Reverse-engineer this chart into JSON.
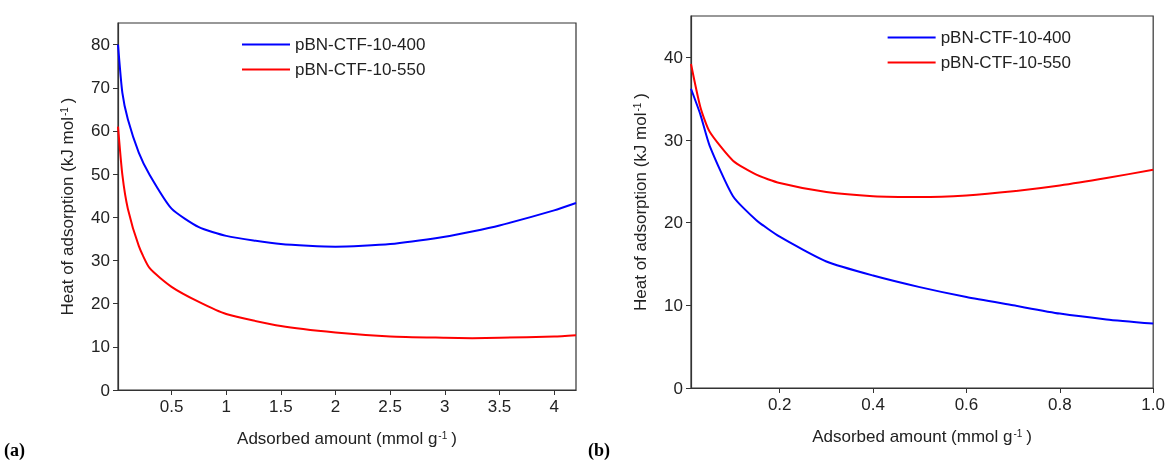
{
  "chart_data": [
    {
      "type": "line",
      "xlabel": "Adsorbed amount (mmol g$^{-1}$)",
      "ylabel": "Heat of adsorption (kJ mol$^{-1}$)",
      "annotations": [
        "(a)"
      ],
      "legend": "top",
      "grid": false,
      "marker": "none",
      "line_style": "solid",
      "xlim": [
        0.01,
        4.2
      ],
      "xticks": [
        0.5,
        1,
        1.5,
        2,
        2.5,
        3,
        3.5,
        4
      ],
      "ylim": [
        0,
        85
      ],
      "yticks": [
        0,
        10,
        20,
        30,
        40,
        50,
        60,
        70,
        80
      ],
      "x": [
        0.01,
        0.05,
        0.1,
        0.2,
        0.3,
        0.5,
        0.75,
        1,
        1.5,
        2,
        2.5,
        3,
        3.25,
        3.5,
        4,
        4.2
      ],
      "series": [
        {
          "name": "pBN-CTF-10-400",
          "color": "#0000ff",
          "values": [
            80,
            68.8,
            62.7,
            55,
            49.8,
            42,
            37.7,
            35.7,
            33.8,
            33.2,
            33.8,
            35.5,
            36.7,
            38.1,
            41.6,
            43.3
          ]
        },
        {
          "name": "pBN-CTF-10-550",
          "color": "#ff0000",
          "values": [
            61,
            49.8,
            42,
            33.4,
            28.2,
            23.9,
            20.4,
            17.6,
            14.8,
            13.3,
            12.4,
            12.1,
            12,
            12.1,
            12.4,
            12.7
          ]
        }
      ]
    },
    {
      "type": "line",
      "xlabel": "Adsorbed amount (mmol g$^{-1}$)",
      "ylabel": "Heat of adsorption (kJ mol$^{-1}$)",
      "annotations": [
        "(b)"
      ],
      "legend": "top right",
      "grid": false,
      "marker": "none",
      "line_style": "solid",
      "xlim": [
        0.01,
        1
      ],
      "xticks": [
        0.2,
        0.4,
        0.6,
        0.8,
        {
          "value": 1,
          "label": "1.0"
        }
      ],
      "ylim": [
        0,
        45
      ],
      "yticks": [
        0,
        10,
        20,
        30,
        40
      ],
      "x": [
        0.01,
        0.03,
        0.05,
        0.1,
        0.15,
        0.2,
        0.3,
        0.4,
        0.5,
        0.6,
        0.7,
        0.8,
        0.9,
        1
      ],
      "series": [
        {
          "name": "pBN-CTF-10-400",
          "color": "#0000ff",
          "values": [
            36.2,
            33.1,
            29.3,
            23.2,
            20.3,
            18.3,
            15.3,
            13.6,
            12.2,
            11,
            10,
            9,
            8.3,
            7.8
          ]
        },
        {
          "name": "pBN-CTF-10-550",
          "color": "#ff0000",
          "values": [
            39.2,
            34,
            31,
            27.5,
            25.8,
            24.8,
            23.7,
            23.2,
            23.1,
            23.3,
            23.8,
            24.5,
            25.4,
            26.4
          ]
        }
      ]
    }
  ]
}
